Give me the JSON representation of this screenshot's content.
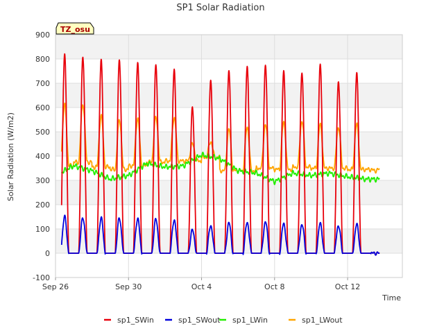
{
  "chart_data": {
    "type": "line",
    "title": "SP1 Solar Radiation",
    "xlabel": "Time",
    "ylabel": "Solar Radiation (W/m2)",
    "badge": "TZ_osu",
    "xlim": [
      "2023-09-26",
      "2023-10-15"
    ],
    "ylim": [
      -100,
      900
    ],
    "yticks": [
      -100,
      0,
      100,
      200,
      300,
      400,
      500,
      600,
      700,
      800,
      900
    ],
    "xticks": [
      {
        "date": "2023-09-26",
        "label": "Sep 26"
      },
      {
        "date": "2023-09-30",
        "label": "Sep 30"
      },
      {
        "date": "2023-10-04",
        "label": "Oct 4"
      },
      {
        "date": "2023-10-08",
        "label": "Oct 8"
      },
      {
        "date": "2023-10-12",
        "label": "Oct 12"
      }
    ],
    "grid": true,
    "legend_position": "bottom",
    "start": "2023-09-26T08:00",
    "end": "2023-10-13T18:00",
    "days": [
      "2023-09-26",
      "2023-09-27",
      "2023-09-28",
      "2023-09-29",
      "2023-09-30",
      "2023-10-01",
      "2023-10-02",
      "2023-10-03",
      "2023-10-04",
      "2023-10-05",
      "2023-10-06",
      "2023-10-07",
      "2023-10-08",
      "2023-10-09",
      "2023-10-10",
      "2023-10-11",
      "2023-10-12",
      "2023-10-13"
    ],
    "series": [
      {
        "name": "sp1_SWin",
        "color": "#e8000b",
        "daily_peak": [
          815,
          812,
          795,
          798,
          785,
          775,
          760,
          600,
          715,
          750,
          770,
          775,
          750,
          745,
          775,
          710,
          740,
          0
        ],
        "night": 0
      },
      {
        "name": "sp1_SWout",
        "color": "#0000dd",
        "daily_peak": [
          150,
          148,
          145,
          145,
          143,
          140,
          138,
          95,
          115,
          125,
          127,
          130,
          122,
          120,
          122,
          115,
          118,
          0
        ],
        "night": 0
      },
      {
        "name": "sp1_LWin",
        "color": "#22ee00",
        "daily_level": [
          320,
          360,
          340,
          305,
          320,
          370,
          355,
          360,
          405,
          390,
          340,
          330,
          295,
          330,
          320,
          330,
          315,
          305
        ]
      },
      {
        "name": "sp1_LWout",
        "color": "#ffa500",
        "daily_peak": [
          610,
          615,
          565,
          550,
          555,
          560,
          560,
          450,
          460,
          510,
          520,
          530,
          540,
          545,
          530,
          520,
          530,
          340
        ],
        "night": [
          360,
          375,
          355,
          345,
          360,
          375,
          380,
          380,
          395,
          340,
          340,
          350,
          345,
          355,
          350,
          350,
          345,
          345
        ]
      }
    ]
  }
}
